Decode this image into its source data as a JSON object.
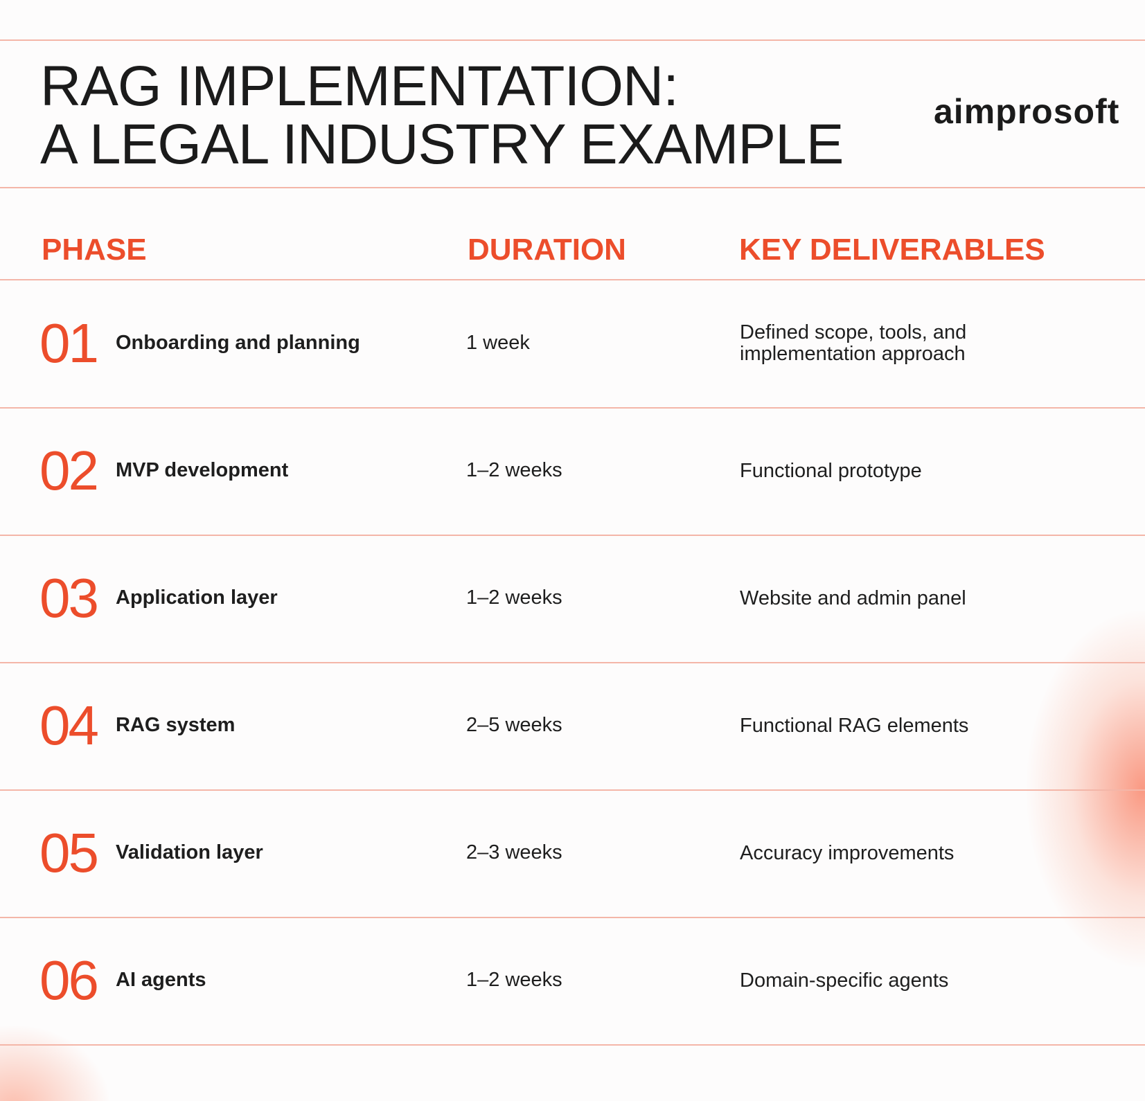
{
  "header": {
    "title_lines": [
      "RAG IMPLEMENTATION:",
      "A LEGAL INDUSTRY EXAMPLE"
    ],
    "logo": "aimprosoft"
  },
  "table": {
    "columns": [
      "PHASE",
      "DURATION",
      "KEY DELIVERABLES"
    ],
    "rows": [
      {
        "number": "01",
        "phase": "Onboarding and planning",
        "duration": "1 week",
        "deliverables": "Defined scope, tools, and implementation approach"
      },
      {
        "number": "02",
        "phase": "MVP development",
        "duration": "1–2 weeks",
        "deliverables": "Functional prototype"
      },
      {
        "number": "03",
        "phase": "Application layer",
        "duration": "1–2 weeks",
        "deliverables": "Website and admin panel"
      },
      {
        "number": "04",
        "phase": "RAG system",
        "duration": "2–5 weeks",
        "deliverables": "Functional RAG elements"
      },
      {
        "number": "05",
        "phase": "Validation layer",
        "duration": "2–3 weeks",
        "deliverables": "Accuracy improvements"
      },
      {
        "number": "06",
        "phase": "AI agents",
        "duration": "1–2 weeks",
        "deliverables": "Domain-specific agents"
      }
    ]
  }
}
